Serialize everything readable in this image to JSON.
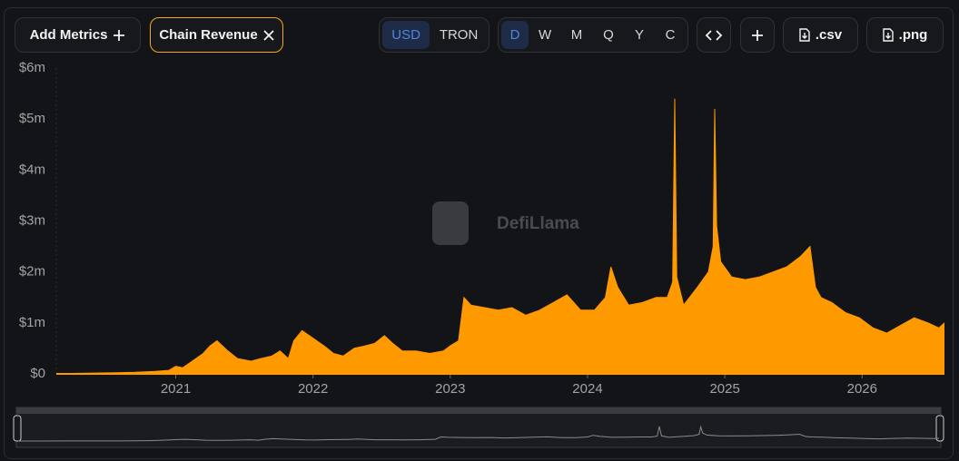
{
  "toolbar": {
    "add_metrics": "Add Metrics",
    "metric": "Chain Revenue",
    "currencies": [
      "USD",
      "TRON"
    ],
    "active_currency": "USD",
    "periods": [
      "D",
      "W",
      "M",
      "Q",
      "Y",
      "C"
    ],
    "active_period": "D",
    "downloads": [
      ".csv",
      ".png"
    ]
  },
  "watermark": "DefiLlama",
  "chart_data": {
    "type": "area",
    "color": "#ff9900",
    "x": [
      2020.13,
      2020.3,
      2020.5,
      2020.7,
      2020.85,
      2020.95,
      2021.0,
      2021.05,
      2021.12,
      2021.2,
      2021.25,
      2021.3,
      2021.38,
      2021.45,
      2021.55,
      2021.62,
      2021.7,
      2021.76,
      2021.82,
      2021.86,
      2021.92,
      2022.0,
      2022.08,
      2022.15,
      2022.22,
      2022.3,
      2022.38,
      2022.45,
      2022.52,
      2022.58,
      2022.65,
      2022.75,
      2022.85,
      2022.95,
      2023.0,
      2023.06,
      2023.1,
      2023.15,
      2023.25,
      2023.35,
      2023.45,
      2023.55,
      2023.65,
      2023.75,
      2023.85,
      2023.95,
      2024.05,
      2024.13,
      2024.17,
      2024.22,
      2024.3,
      2024.4,
      2024.5,
      2024.58,
      2024.62,
      2024.635,
      2024.65,
      2024.7,
      2024.8,
      2024.88,
      2024.915,
      2024.926,
      2024.94,
      2024.97,
      2025.05,
      2025.15,
      2025.25,
      2025.35,
      2025.45,
      2025.55,
      2025.62,
      2025.66,
      2025.7,
      2025.78,
      2025.88,
      2025.98,
      2026.08,
      2026.18,
      2026.28,
      2026.38,
      2026.48,
      2026.56,
      2026.6
    ],
    "values": [
      5000,
      10000,
      20000,
      30000,
      50000,
      70000,
      150000,
      120000,
      250000,
      400000,
      550000,
      650000,
      450000,
      300000,
      250000,
      300000,
      350000,
      450000,
      300000,
      650000,
      850000,
      700000,
      550000,
      400000,
      350000,
      500000,
      550000,
      600000,
      750000,
      600000,
      450000,
      450000,
      400000,
      450000,
      550000,
      650000,
      1500000,
      1350000,
      1300000,
      1250000,
      1300000,
      1150000,
      1250000,
      1400000,
      1550000,
      1250000,
      1250000,
      1500000,
      2100000,
      1700000,
      1350000,
      1400000,
      1500000,
      1500000,
      1800000,
      5400000,
      1900000,
      1350000,
      1700000,
      2000000,
      2500000,
      5200000,
      2900000,
      2200000,
      1900000,
      1850000,
      1900000,
      2000000,
      2100000,
      2300000,
      2500000,
      1700000,
      1500000,
      1400000,
      1200000,
      1100000,
      900000,
      800000,
      950000,
      1100000,
      1000000,
      900000,
      1000000
    ],
    "xlim": [
      2020.13,
      2026.6
    ],
    "xticks": [
      2021,
      2022,
      2023,
      2024,
      2025,
      2026
    ],
    "ylim": [
      0,
      6000000
    ],
    "yticks": [
      {
        "value": 0,
        "label": "$0"
      },
      {
        "value": 1000000,
        "label": "$1m"
      },
      {
        "value": 2000000,
        "label": "$2m"
      },
      {
        "value": 3000000,
        "label": "$3m"
      },
      {
        "value": 4000000,
        "label": "$4m"
      },
      {
        "value": 5000000,
        "label": "$5m"
      },
      {
        "value": 6000000,
        "label": "$6m"
      }
    ],
    "grid": false
  }
}
